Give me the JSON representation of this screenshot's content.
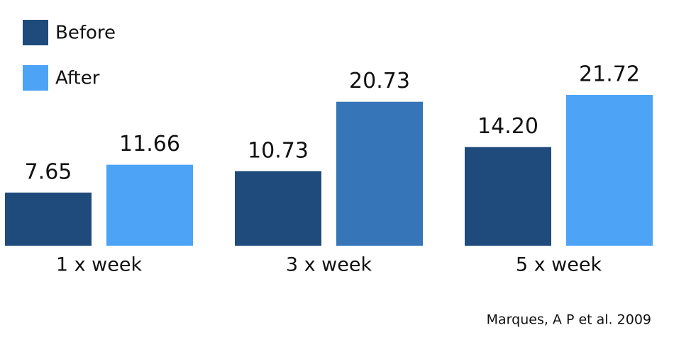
{
  "chart_data": {
    "type": "bar",
    "categories": [
      "1 x week",
      "3 x week",
      "5 x week"
    ],
    "series": [
      {
        "name": "Before",
        "color": "#1f4a7c",
        "values": [
          7.65,
          10.73,
          14.2
        ],
        "value_labels": [
          "7.65",
          "10.73",
          "14.20"
        ]
      },
      {
        "name": "After",
        "color": "#4da3f5",
        "colors": [
          "#4da3f5",
          "#3575b8",
          "#4da3f5"
        ],
        "values": [
          11.66,
          20.73,
          21.72
        ],
        "value_labels": [
          "11.66",
          "20.73",
          "21.72"
        ]
      }
    ],
    "legend": "top-left",
    "source": "Marques, A P et al. 2009"
  }
}
